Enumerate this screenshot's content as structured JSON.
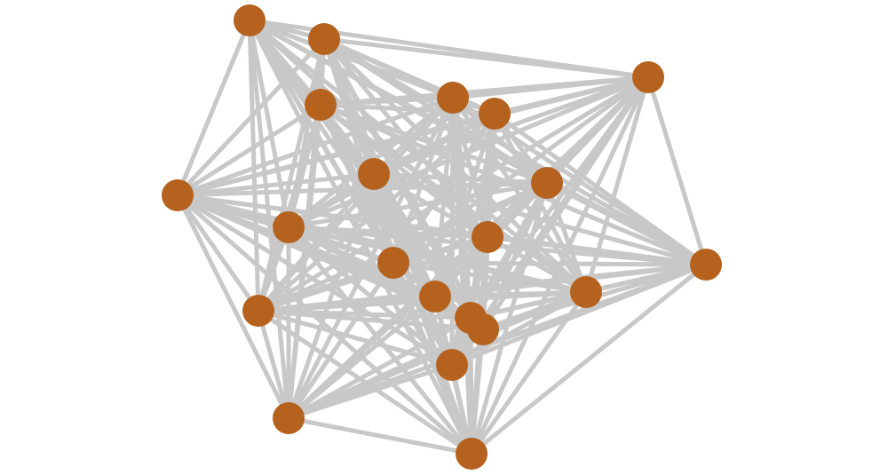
{
  "graph": {
    "type": "network",
    "node_color": "#b5621e",
    "edge_color": "#c8c8c8",
    "node_count": 21,
    "nodes": [
      "n0",
      "n1",
      "n2",
      "n3",
      "n4",
      "n5",
      "n6",
      "n7",
      "n8",
      "n9",
      "n10",
      "n11",
      "n12",
      "n13",
      "n14",
      "n15",
      "n16",
      "n17",
      "n18",
      "n19",
      "n20"
    ],
    "edges": "all-pairs"
  }
}
